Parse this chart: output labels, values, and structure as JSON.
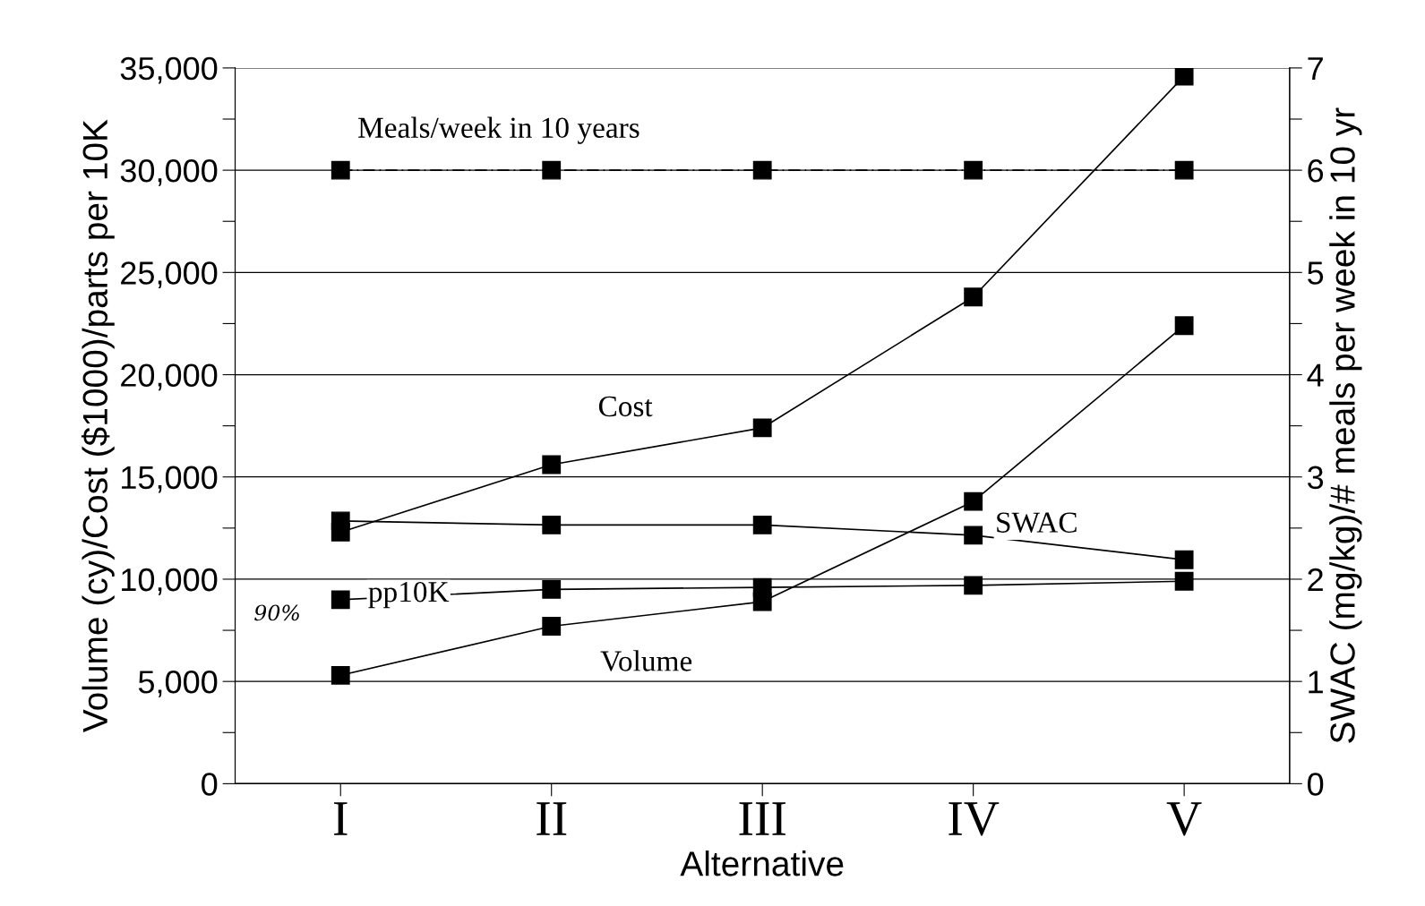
{
  "chart_data": {
    "type": "line",
    "xlabel": "Alternative",
    "ylabel": "Volume (cy)/Cost ($1000)/parts per 10K",
    "y2label": "SWAC (mg/kg)/# meals per week in 10 yr",
    "categories": [
      "I",
      "II",
      "III",
      "IV",
      "V"
    ],
    "series": [
      {
        "name": "Meals/week in 10 years",
        "color": "#000000",
        "axis": "y2",
        "line_style": "dashed",
        "values": [
          6,
          6,
          6,
          6,
          6
        ]
      },
      {
        "name": "Cost",
        "color": "#000000",
        "values": [
          12300,
          15600,
          17400,
          23800,
          34600
        ]
      },
      {
        "name": "SWAC",
        "color": "#000000",
        "axis": "y2",
        "values": [
          2.57,
          2.53,
          2.53,
          2.43,
          2.19
        ]
      },
      {
        "name": "pp10K",
        "color": "#000000",
        "values": [
          9000,
          9500,
          9600,
          9700,
          9900
        ]
      },
      {
        "name": "Volume",
        "color": "#000000",
        "values": [
          5300,
          7700,
          8900,
          13800,
          22400
        ]
      }
    ],
    "annotations": [
      "90%"
    ],
    "marker": "square",
    "grid": "y",
    "ylim": [
      0,
      35000
    ],
    "yticks": [
      {
        "value": 0,
        "label": "0"
      },
      {
        "value": 2500,
        "label": null
      },
      {
        "value": 5000,
        "label": "5,000"
      },
      {
        "value": 7500,
        "label": null
      },
      {
        "value": 10000,
        "label": "10,000"
      },
      {
        "value": 12500,
        "label": null
      },
      {
        "value": 15000,
        "label": "15,000"
      },
      {
        "value": 17500,
        "label": null
      },
      {
        "value": 20000,
        "label": "20,000"
      },
      {
        "value": 22500,
        "label": null
      },
      {
        "value": 25000,
        "label": "25,000"
      },
      {
        "value": 27500,
        "label": null
      },
      {
        "value": 30000,
        "label": "30,000"
      },
      {
        "value": 32500,
        "label": null
      },
      {
        "value": 35000,
        "label": "35,000"
      }
    ],
    "y2lim": [
      0,
      7
    ],
    "y2ticks": [
      0,
      {
        "value": 0.5,
        "label": null
      },
      1,
      {
        "value": 1.5,
        "label": null
      },
      2,
      {
        "value": 2.5,
        "label": null
      },
      3,
      {
        "value": 3.5,
        "label": null
      },
      4,
      {
        "value": 4.5,
        "label": null
      },
      5,
      {
        "value": 5.5,
        "label": null
      },
      6,
      {
        "value": 6.5,
        "label": null
      },
      7
    ]
  }
}
